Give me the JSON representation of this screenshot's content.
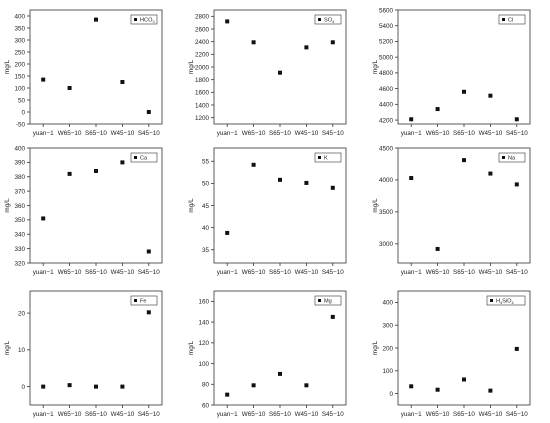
{
  "chart_data": [
    {
      "type": "scatter",
      "legend": {
        "label": "HCO",
        "sub": "3",
        "placement": "top-right"
      },
      "ylabel": "mg/L",
      "categories": [
        "yuan−1",
        "W65−10",
        "S65−10",
        "W45−10",
        "S45−10"
      ],
      "values": [
        135,
        100,
        385,
        125,
        0
      ],
      "ylim": [
        -50,
        425
      ],
      "yticks": [
        -50,
        0,
        50,
        100,
        150,
        200,
        250,
        300,
        350,
        400
      ],
      "ytick_labels": [
        "-50",
        "0",
        "50",
        "100",
        "150",
        "200",
        "250",
        "300",
        "350",
        "400"
      ]
    },
    {
      "type": "scatter",
      "legend": {
        "label": "SO",
        "sub": "4",
        "placement": "top-right"
      },
      "ylabel": "mg/L",
      "categories": [
        "yuan−1",
        "W65−10",
        "S65−10",
        "W45−10",
        "S45−10"
      ],
      "values": [
        2720,
        2390,
        1910,
        2310,
        2390
      ],
      "ylim": [
        1100,
        2900
      ],
      "yticks": [
        1200,
        1400,
        1600,
        1800,
        2000,
        2200,
        2400,
        2600,
        2800
      ],
      "ytick_labels": [
        "1200",
        "1400",
        "1600",
        "1800",
        "2000",
        "2200",
        "2400",
        "2600",
        "2800"
      ]
    },
    {
      "type": "scatter",
      "legend": {
        "label": "Cl",
        "sub": "",
        "placement": "top-right"
      },
      "ylabel": "mg/L",
      "categories": [
        "yuan−1",
        "W65−10",
        "S65−10",
        "W45−10",
        "S45−10"
      ],
      "values": [
        4210,
        4340,
        4560,
        4510,
        4210
      ],
      "ylim": [
        4150,
        5600
      ],
      "yticks": [
        4200,
        4400,
        4600,
        4800,
        5000,
        5200,
        5400,
        5600
      ],
      "ytick_labels": [
        "4200",
        "4400",
        "4600",
        "4800",
        "5000",
        "5200",
        "5400",
        "5600"
      ]
    },
    {
      "type": "scatter",
      "legend": {
        "label": "Ca",
        "sub": "",
        "placement": "top-right"
      },
      "ylabel": "mg/L",
      "categories": [
        "yuan−1",
        "W65−10",
        "S65−10",
        "W45−10",
        "S45−10"
      ],
      "values": [
        351,
        382,
        384,
        390,
        328
      ],
      "ylim": [
        320,
        400
      ],
      "yticks": [
        320,
        330,
        340,
        350,
        360,
        370,
        380,
        390,
        400
      ],
      "ytick_labels": [
        "320",
        "330",
        "340",
        "350",
        "360",
        "370",
        "380",
        "390",
        "400"
      ]
    },
    {
      "type": "scatter",
      "legend": {
        "label": "K",
        "sub": "",
        "placement": "top-right"
      },
      "ylabel": "mg/L",
      "categories": [
        "yuan−1",
        "W65−10",
        "S65−10",
        "W45−10",
        "S45−10"
      ],
      "values": [
        38.8,
        54.2,
        50.8,
        50.1,
        49
      ],
      "ylim": [
        32,
        58
      ],
      "yticks": [
        35,
        40,
        45,
        50,
        55
      ],
      "ytick_labels": [
        "35",
        "40",
        "45",
        "50",
        "55"
      ]
    },
    {
      "type": "scatter",
      "legend": {
        "label": "Na",
        "sub": "",
        "placement": "top-right"
      },
      "ylabel": "mg/L",
      "categories": [
        "yuan−1",
        "W65−10",
        "S65−10",
        "W45−10",
        "S45−10"
      ],
      "values": [
        4030,
        2920,
        4310,
        4100,
        3930
      ],
      "ylim": [
        2700,
        4500
      ],
      "yticks": [
        3000,
        3500,
        4000,
        4500
      ],
      "ytick_labels": [
        "3000",
        "3500",
        "4000",
        "4500"
      ]
    },
    {
      "type": "scatter",
      "legend": {
        "label": "Fe",
        "sub": "",
        "placement": "top-right"
      },
      "ylabel": "mg/L",
      "categories": [
        "yuan−1",
        "W65−10",
        "S65−10",
        "W45−10",
        "S45−10"
      ],
      "values": [
        0,
        0.4,
        0,
        0,
        20.2
      ],
      "ylim": [
        -5,
        26
      ],
      "yticks": [
        0,
        10,
        20
      ],
      "ytick_labels": [
        "0",
        "10",
        "20"
      ]
    },
    {
      "type": "scatter",
      "legend": {
        "label": "Mg",
        "sub": "",
        "placement": "top-right"
      },
      "ylabel": "mg/L",
      "categories": [
        "yuan−1",
        "W65−10",
        "S65−10",
        "W45−10",
        "S45−10"
      ],
      "values": [
        70,
        79,
        90,
        79,
        145
      ],
      "ylim": [
        60,
        170
      ],
      "yticks": [
        60,
        80,
        100,
        120,
        140,
        160
      ],
      "ytick_labels": [
        "60",
        "80",
        "100",
        "120",
        "140",
        "160"
      ]
    },
    {
      "type": "scatter",
      "legend": {
        "label": "H",
        "sub": "4",
        "label2": "SiO",
        "sub2": "4",
        "placement": "top-right"
      },
      "ylabel": "mg/L",
      "categories": [
        "yuan−1",
        "W65−10",
        "S65−10",
        "W45−10",
        "S45−10"
      ],
      "values": [
        32,
        17,
        62,
        13,
        196
      ],
      "ylim": [
        -50,
        450
      ],
      "yticks": [
        0,
        100,
        200,
        300,
        400
      ],
      "ytick_labels": [
        "0",
        "100",
        "200",
        "300",
        "400"
      ]
    }
  ]
}
